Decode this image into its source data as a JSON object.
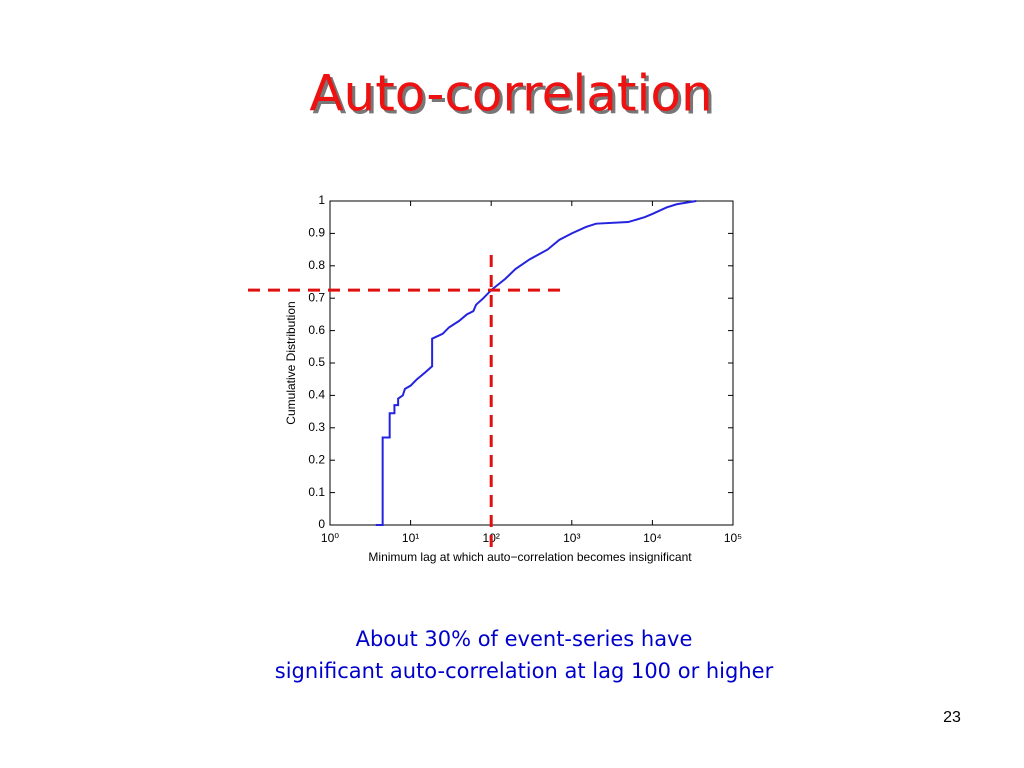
{
  "slide": {
    "title": "Auto-correlation",
    "caption": [
      "About 30% of event-series have",
      "significant auto-correlation at lag 100 or higher"
    ],
    "page_number": "23"
  },
  "chart_data": {
    "type": "line",
    "xlabel": "Minimum lag at which auto−correlation becomes insignificant",
    "ylabel": "Cumulative Distribution",
    "xscale": "log",
    "x": [
      3.7,
      4.5,
      4.5,
      5.5,
      5.5,
      6.3,
      6.3,
      7,
      7,
      8,
      8.5,
      10,
      12,
      15,
      18.5,
      18.5,
      25,
      30,
      40,
      50,
      60,
      65,
      80,
      100,
      150,
      200,
      300,
      500,
      700,
      1000,
      1500,
      2000,
      5000,
      8000,
      10000,
      15000,
      20000,
      35000
    ],
    "series": [
      {
        "color": "#2323e0",
        "values": [
          0,
          0,
          0.27,
          0.27,
          0.345,
          0.345,
          0.37,
          0.37,
          0.39,
          0.4,
          0.42,
          0.43,
          0.45,
          0.47,
          0.49,
          0.575,
          0.59,
          0.61,
          0.63,
          0.65,
          0.66,
          0.68,
          0.7,
          0.725,
          0.76,
          0.79,
          0.82,
          0.85,
          0.88,
          0.9,
          0.92,
          0.93,
          0.935,
          0.95,
          0.96,
          0.98,
          0.99,
          1.0
        ]
      }
    ],
    "xlim": [
      1,
      100000
    ],
    "xticks": [
      {
        "value": 1,
        "label": "10⁰"
      },
      {
        "value": 10,
        "label": "10¹"
      },
      {
        "value": 100,
        "label": "10²"
      },
      {
        "value": 1000,
        "label": "10³"
      },
      {
        "value": 10000,
        "label": "10⁴"
      },
      {
        "value": 100000,
        "label": "10⁵"
      }
    ],
    "ylim": [
      0,
      1
    ],
    "yticks": [
      0,
      0.1,
      0.2,
      0.3,
      0.4,
      0.5,
      0.6,
      0.7,
      0.8,
      0.9,
      1
    ],
    "reference_lines": [
      {
        "axis": "y",
        "value": 0.725,
        "color": "#e01010"
      },
      {
        "axis": "x",
        "value": 100,
        "color": "#e01010"
      }
    ]
  }
}
